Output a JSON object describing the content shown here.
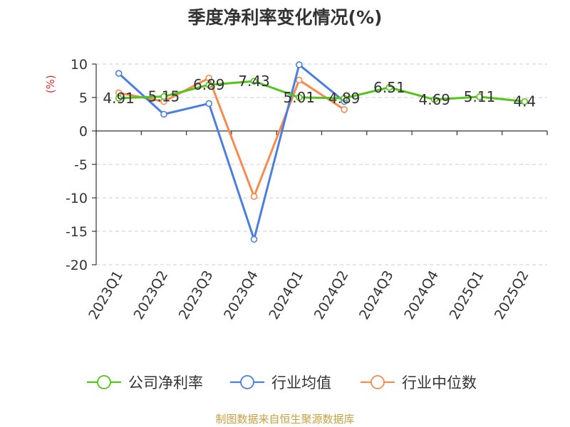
{
  "chart_data": {
    "type": "line",
    "title": "季度净利率变化情况(%)",
    "ylabel": "(%)",
    "categories": [
      "2023Q1",
      "2023Q2",
      "2023Q3",
      "2023Q4",
      "2024Q1",
      "2024Q2",
      "2024Q3",
      "2024Q4",
      "2025Q1",
      "2025Q2"
    ],
    "ylim": [
      -20,
      10
    ],
    "yticks": [
      10,
      5,
      0,
      -5,
      -10,
      -15,
      -20
    ],
    "grid": true,
    "legend_position": "bottom",
    "series": [
      {
        "name": "公司净利率",
        "color": "#52c41a",
        "values": [
          4.91,
          5.15,
          6.89,
          7.43,
          5.01,
          4.89,
          6.51,
          4.69,
          5.11,
          4.4
        ],
        "labels": [
          "4.91",
          "5.15",
          "6.89",
          "7.43",
          "5.01",
          "4.89",
          "6.51",
          "4.69",
          "5.11",
          "4.4"
        ]
      },
      {
        "name": "行业均值",
        "color": "#4a7ee0",
        "values": [
          8.6,
          2.5,
          4.1,
          -16.2,
          9.9,
          4.4,
          null,
          null,
          null,
          null
        ]
      },
      {
        "name": "行业中位数",
        "color": "#f58b4f",
        "values": [
          5.7,
          4.4,
          7.9,
          -9.8,
          7.6,
          3.2,
          null,
          null,
          null,
          null
        ]
      }
    ]
  },
  "footer": {
    "source": "制图数据来自恒生聚源数据库"
  },
  "colors": {
    "title": "#333333",
    "ylabel": "#e03030",
    "source": "#c8a040",
    "grid": "#cccccc",
    "axis": "#333333"
  }
}
